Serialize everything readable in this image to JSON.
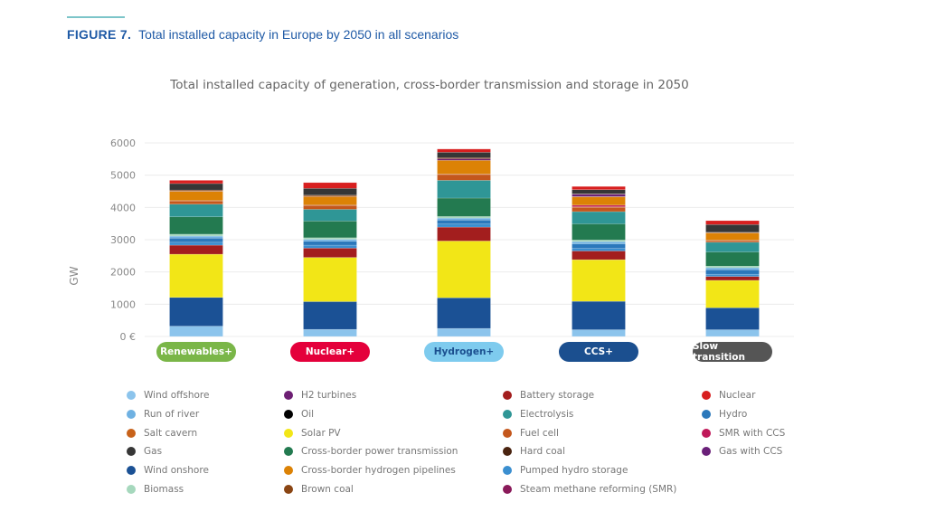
{
  "figure": {
    "number": "FIGURE 7.",
    "caption": "Total installed capacity in Europe by 2050 in all scenarios"
  },
  "chart_data": {
    "type": "bar",
    "stacked": true,
    "title": "Total installed capacity of generation, cross-border transmission and storage in 2050",
    "xlabel": "",
    "ylabel": "GW",
    "ylim": [
      0,
      6000
    ],
    "yticks": [
      "0 €",
      "1000",
      "2000",
      "3000",
      "4000",
      "5000",
      "6000"
    ],
    "grid": true,
    "legend_position": "bottom",
    "categories": [
      "Renewables+",
      "Nuclear+",
      "Hydrogen+",
      "CCS+",
      "Slow transition"
    ],
    "category_colors": [
      "#7ab648",
      "#e4003b",
      "#7ecbee",
      "#1b4f8f",
      "#555555"
    ],
    "category_text_colors": [
      "#ffffff",
      "#ffffff",
      "#1b4f8f",
      "#ffffff",
      "#ffffff"
    ],
    "series": [
      {
        "name": "Wind offshore",
        "color": "#8cc4ec",
        "values": [
          320,
          220,
          250,
          210,
          210
        ]
      },
      {
        "name": "Run of river",
        "color": "#6fb1e2",
        "values": [
          60,
          60,
          60,
          70,
          60
        ]
      },
      {
        "name": "Salt cavern",
        "color": "#c8621a",
        "values": [
          20,
          20,
          20,
          20,
          20
        ]
      },
      {
        "name": "Gas",
        "color": "#363636",
        "values": [
          200,
          210,
          170,
          130,
          240
        ]
      },
      {
        "name": "Wind onshore",
        "color": "#1b5195",
        "values": [
          890,
          860,
          950,
          880,
          680
        ]
      },
      {
        "name": "Biomass",
        "color": "#a6d8bd",
        "values": [
          60,
          50,
          50,
          50,
          50
        ]
      },
      {
        "name": "H2 turbines",
        "color": "#6d1f73",
        "values": [
          10,
          10,
          50,
          10,
          10
        ]
      },
      {
        "name": "Oil",
        "color": "#000000",
        "values": [
          0,
          0,
          0,
          0,
          0
        ]
      },
      {
        "name": "Solar PV",
        "color": "#f2e617",
        "values": [
          1340,
          1370,
          1760,
          1290,
          850
        ]
      },
      {
        "name": "Cross-border power transmission",
        "color": "#237a50",
        "values": [
          540,
          520,
          570,
          500,
          440
        ]
      },
      {
        "name": "Cross-border hydrogen pipelines",
        "color": "#dc8205",
        "values": [
          280,
          260,
          420,
          260,
          220
        ]
      },
      {
        "name": "Brown coal",
        "color": "#8a4513",
        "values": [
          30,
          30,
          30,
          10,
          10
        ]
      },
      {
        "name": "Battery storage",
        "color": "#a31e1e",
        "values": [
          280,
          290,
          430,
          270,
          120
        ]
      },
      {
        "name": "Electrolysis",
        "color": "#2f9696",
        "values": [
          390,
          360,
          550,
          380,
          300
        ]
      },
      {
        "name": "Fuel cell",
        "color": "#c4571c",
        "values": [
          100,
          120,
          180,
          130,
          50
        ]
      },
      {
        "name": "Hard coal",
        "color": "#4a2410",
        "values": [
          0,
          0,
          0,
          0,
          0
        ]
      },
      {
        "name": "Pumped hydro storage",
        "color": "#3b8fd0",
        "values": [
          90,
          90,
          100,
          80,
          70
        ]
      },
      {
        "name": "Steam methane reforming (SMR)",
        "color": "#8a1a5a",
        "values": [
          0,
          0,
          0,
          0,
          0
        ]
      },
      {
        "name": "Nuclear",
        "color": "#d81f1f",
        "values": [
          100,
          180,
          100,
          100,
          120
        ]
      },
      {
        "name": "Hydro",
        "color": "#2b78bb",
        "values": [
          130,
          120,
          120,
          140,
          140
        ]
      },
      {
        "name": "SMR with CCS",
        "color": "#c0195a",
        "values": [
          0,
          0,
          0,
          50,
          0
        ]
      },
      {
        "name": "Gas with CCS",
        "color": "#6a2079",
        "values": [
          0,
          0,
          0,
          70,
          0
        ]
      }
    ]
  }
}
